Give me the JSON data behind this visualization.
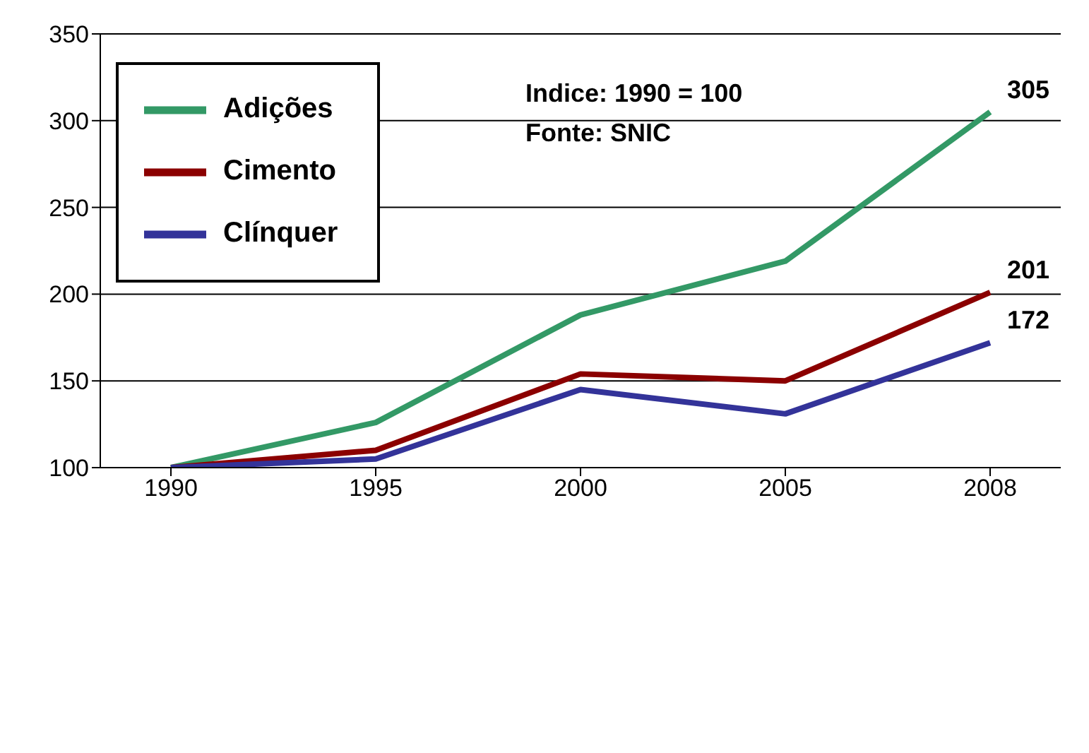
{
  "chart_data": {
    "type": "line",
    "categories": [
      "1990",
      "1995",
      "2000",
      "2005",
      "2008"
    ],
    "series": [
      {
        "name": "Adições",
        "color": "#339966",
        "values": [
          100,
          126,
          188,
          219,
          305
        ],
        "value_labels": [
          null,
          null,
          null,
          null,
          "305"
        ]
      },
      {
        "name": "Cimento",
        "color": "#8b0000",
        "values": [
          100,
          110,
          154,
          150,
          201
        ],
        "value_labels": [
          null,
          null,
          null,
          null,
          "201"
        ]
      },
      {
        "name": "Clínquer",
        "color": "#333399",
        "values": [
          100,
          105,
          145,
          131,
          172
        ],
        "value_labels": [
          null,
          null,
          null,
          null,
          "172"
        ]
      }
    ],
    "ylim": [
      100,
      350
    ],
    "yticks": [
      100,
      150,
      200,
      250,
      300,
      350
    ],
    "grid": "y",
    "legend": "top left",
    "marker": "none",
    "annotations": [
      "Indice: 1990 = 100",
      "Fonte: SNIC"
    ]
  }
}
